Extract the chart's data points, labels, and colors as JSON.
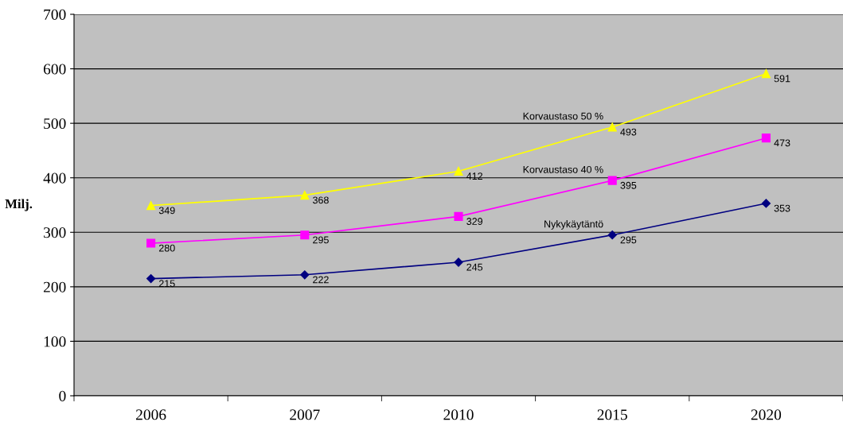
{
  "chart_data": {
    "type": "line",
    "ylabel": "Milj.",
    "categories": [
      "2006",
      "2007",
      "2010",
      "2015",
      "2020"
    ],
    "ylim": [
      0,
      700
    ],
    "yticks": [
      0,
      100,
      200,
      300,
      400,
      500,
      600,
      700
    ],
    "grid": "y",
    "legend": false,
    "data_labels": true,
    "series": [
      {
        "name": "Nykykäytäntö",
        "color": "#000080",
        "marker": "diamond",
        "values": [
          215,
          222,
          245,
          295,
          353
        ]
      },
      {
        "name": "Korvaustaso 40 %",
        "color": "#ff00ff",
        "marker": "square",
        "values": [
          280,
          295,
          329,
          395,
          473
        ]
      },
      {
        "name": "Korvaustaso 50 %",
        "color": "#ffff00",
        "marker": "triangle",
        "values": [
          349,
          368,
          412,
          493,
          591
        ]
      }
    ]
  }
}
